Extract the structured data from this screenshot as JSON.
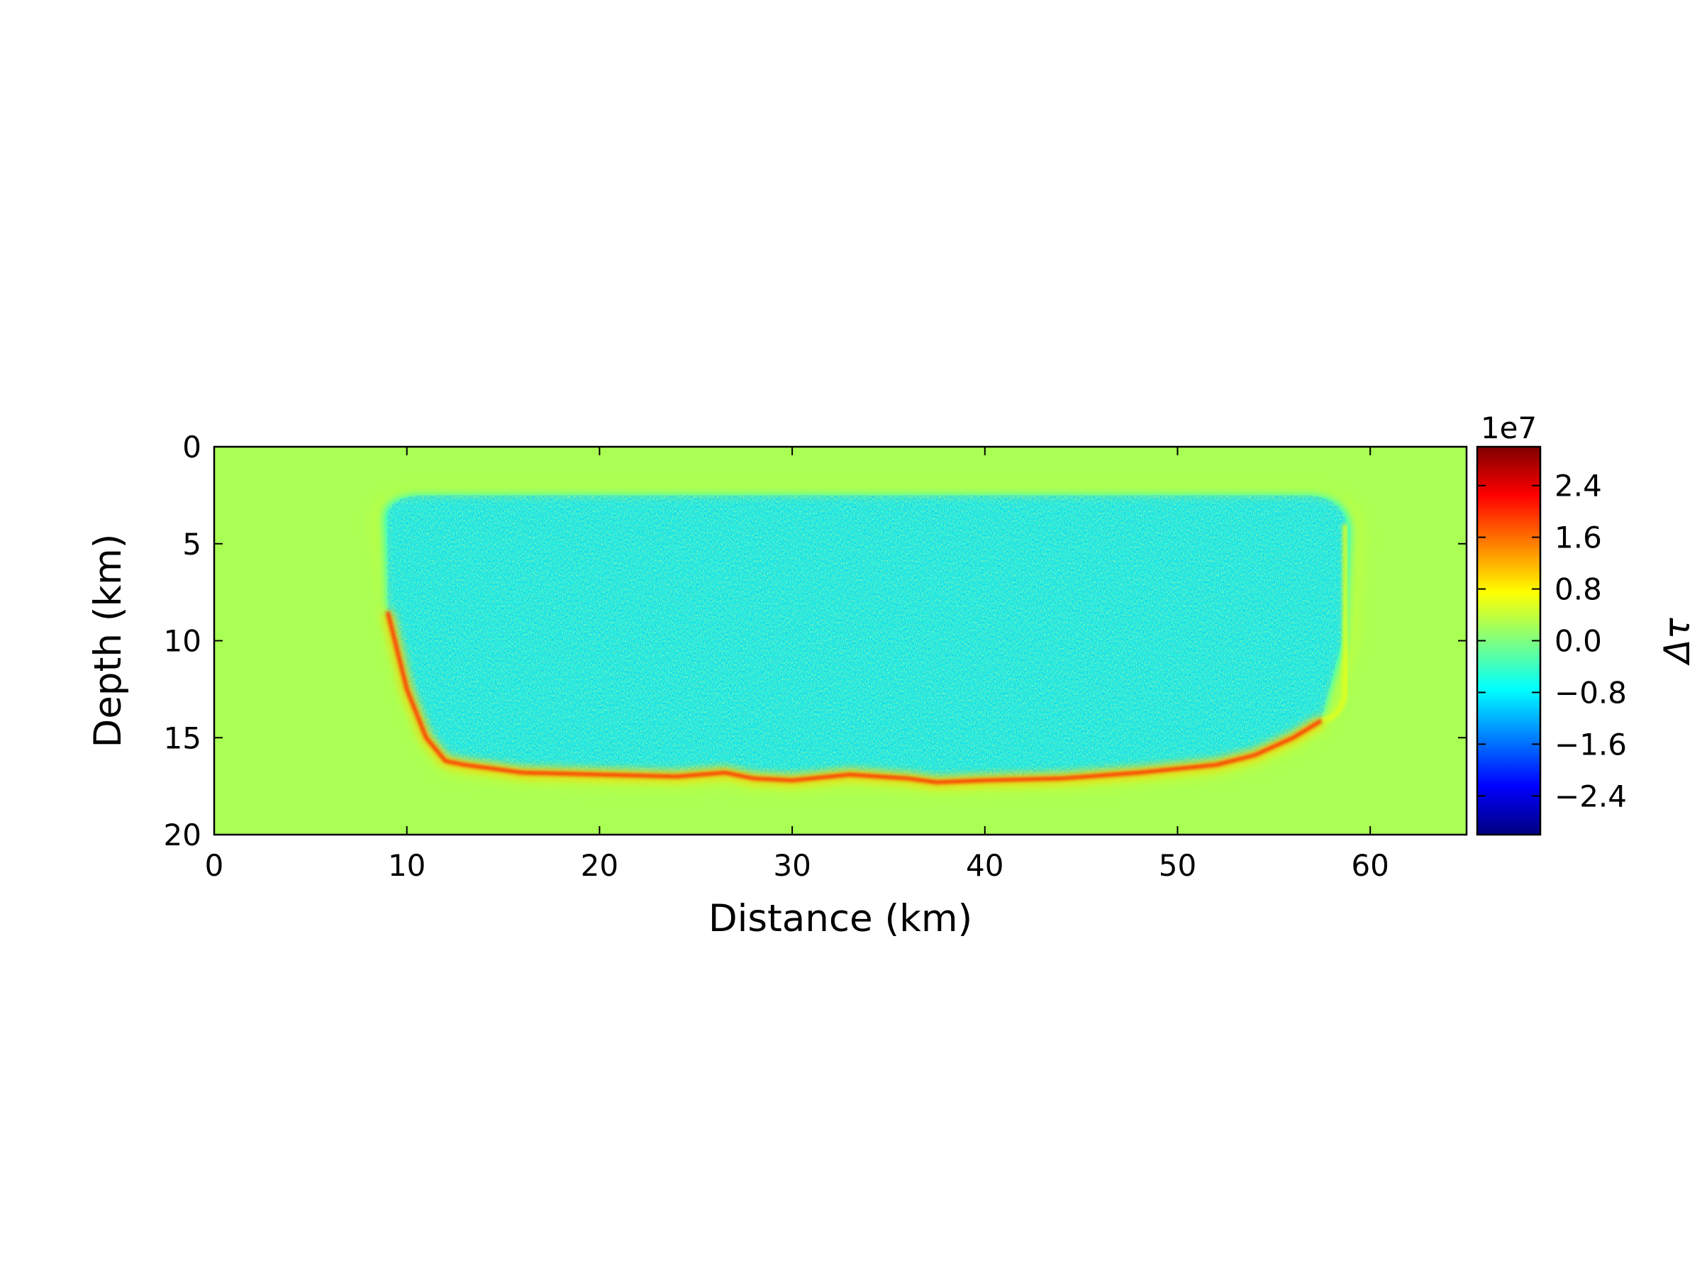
{
  "chart_data": {
    "type": "heatmap",
    "title": "",
    "xlabel": "Distance (km)",
    "ylabel": "Depth (km)",
    "xlim": [
      0,
      65
    ],
    "ylim": [
      20,
      0
    ],
    "x_ticks": [
      0,
      10,
      20,
      30,
      40,
      50,
      60
    ],
    "y_ticks": [
      0,
      5,
      10,
      15,
      20
    ],
    "colorbar": {
      "label": "Δτ",
      "exponent_label": "1e7",
      "range": [
        -3.0,
        3.0
      ],
      "ticks": [
        2.4,
        1.6,
        0.8,
        0.0,
        -0.8,
        -1.6,
        -2.4
      ],
      "tick_labels": [
        "2.4",
        "1.6",
        "0.8",
        "0.0",
        "−0.8",
        "−1.6",
        "−2.4"
      ],
      "colormap": "jet",
      "colormap_stops": [
        "#00007f",
        "#0000ff",
        "#007fff",
        "#00ffff",
        "#7fff7f",
        "#ffff00",
        "#ff7f00",
        "#ff0000",
        "#7f0000"
      ]
    },
    "field": {
      "description_values": "stress change in units of 1e7",
      "background_value": 0.25,
      "rupture_interior_mean": -0.55,
      "rupture_front_peak": 2.0,
      "rupture_extent_x": [
        8.5,
        59
      ],
      "rupture_extent_depth": [
        2.5,
        17.2
      ],
      "bottom_edge_profile": {
        "x": [
          9,
          10,
          11,
          12,
          13,
          16,
          20,
          24,
          26.5,
          28,
          30,
          33,
          36,
          37.5,
          40,
          44,
          48,
          52,
          54,
          56,
          57.5
        ],
        "depth": [
          8.5,
          12.5,
          15.0,
          16.2,
          16.4,
          16.8,
          16.9,
          17.0,
          16.8,
          17.1,
          17.2,
          16.9,
          17.1,
          17.3,
          17.2,
          17.1,
          16.8,
          16.4,
          15.9,
          15.0,
          14.1
        ]
      }
    }
  }
}
